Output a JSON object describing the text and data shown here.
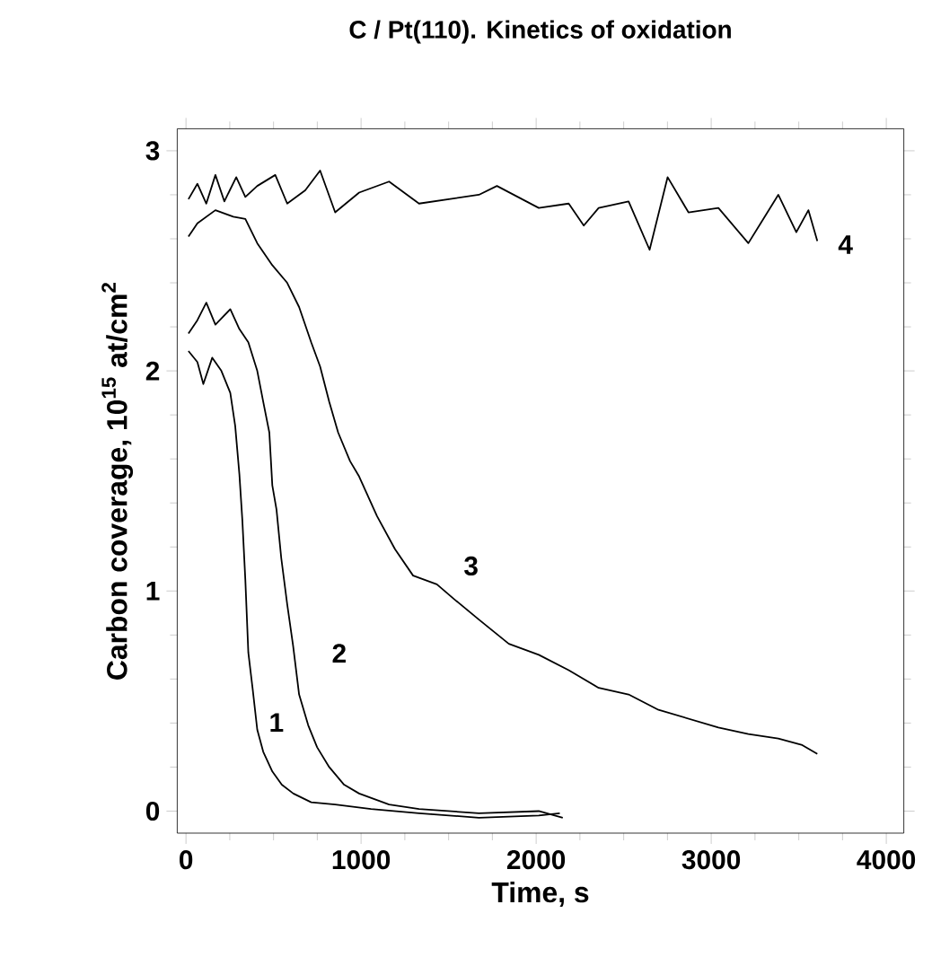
{
  "chart_data": {
    "type": "line",
    "title": "C / Pt(110). Kinetics of oxidation",
    "xlabel": "Time, s",
    "ylabel": "Carbon coverage, 10$^{15}$ at/cm$^{2}$",
    "xlim": [
      -50,
      4100
    ],
    "ylim": [
      -0.1,
      3.1
    ],
    "xticks": [
      0,
      1000,
      2000,
      3000,
      4000
    ],
    "yticks": [
      0,
      1,
      2,
      3
    ],
    "grid": false,
    "marker": "none",
    "line_style": "solid",
    "series": [
      {
        "name": "1",
        "color": "#000000",
        "x": [
          14,
          65,
          99,
          150,
          202,
          253,
          281,
          305,
          322,
          339,
          356,
          380,
          407,
          441,
          493,
          547,
          613,
          715,
          852,
          1057,
          1331,
          1673,
          2015,
          2135
        ],
        "values": [
          2.09,
          2.04,
          1.94,
          2.06,
          2.0,
          1.9,
          1.75,
          1.53,
          1.32,
          1.05,
          0.72,
          0.56,
          0.37,
          0.27,
          0.18,
          0.12,
          0.08,
          0.04,
          0.03,
          0.01,
          -0.01,
          -0.03,
          -0.02,
          -0.01
        ]
      },
      {
        "name": "2",
        "color": "#000000",
        "x": [
          14,
          65,
          116,
          168,
          253,
          305,
          356,
          407,
          441,
          476,
          493,
          517,
          544,
          578,
          612,
          646,
          698,
          749,
          818,
          903,
          989,
          1160,
          1331,
          1673,
          2015,
          2152
        ],
        "values": [
          2.17,
          2.23,
          2.31,
          2.21,
          2.28,
          2.19,
          2.13,
          2.0,
          1.86,
          1.72,
          1.48,
          1.37,
          1.15,
          0.94,
          0.75,
          0.53,
          0.39,
          0.29,
          0.2,
          0.12,
          0.08,
          0.03,
          0.01,
          -0.01,
          0.0,
          -0.03
        ]
      },
      {
        "name": "3",
        "color": "#000000",
        "x": [
          14,
          65,
          168,
          270,
          339,
          407,
          493,
          578,
          646,
          715,
          766,
          818,
          869,
          937,
          989,
          1091,
          1194,
          1297,
          1433,
          1536,
          1673,
          1844,
          2015,
          2186,
          2357,
          2528,
          2699,
          2870,
          3041,
          3212,
          3383,
          3520,
          3606
        ],
        "values": [
          2.61,
          2.67,
          2.73,
          2.7,
          2.69,
          2.58,
          2.48,
          2.4,
          2.29,
          2.13,
          2.02,
          1.86,
          1.72,
          1.59,
          1.52,
          1.34,
          1.19,
          1.07,
          1.03,
          0.96,
          0.87,
          0.76,
          0.71,
          0.64,
          0.56,
          0.53,
          0.46,
          0.42,
          0.38,
          0.35,
          0.33,
          0.3,
          0.26
        ]
      },
      {
        "name": "4",
        "color": "#000000",
        "x": [
          14,
          65,
          116,
          168,
          219,
          287,
          339,
          407,
          510,
          578,
          681,
          766,
          852,
          989,
          1160,
          1331,
          1502,
          1673,
          1776,
          2015,
          2186,
          2272,
          2357,
          2528,
          2648,
          2751,
          2870,
          3041,
          3212,
          3383,
          3486,
          3555,
          3606
        ],
        "values": [
          2.78,
          2.85,
          2.76,
          2.89,
          2.77,
          2.88,
          2.79,
          2.84,
          2.89,
          2.76,
          2.82,
          2.91,
          2.72,
          2.81,
          2.86,
          2.76,
          2.78,
          2.8,
          2.84,
          2.74,
          2.76,
          2.66,
          2.74,
          2.77,
          2.55,
          2.88,
          2.72,
          2.74,
          2.58,
          2.8,
          2.63,
          2.73,
          2.59
        ]
      }
    ]
  }
}
